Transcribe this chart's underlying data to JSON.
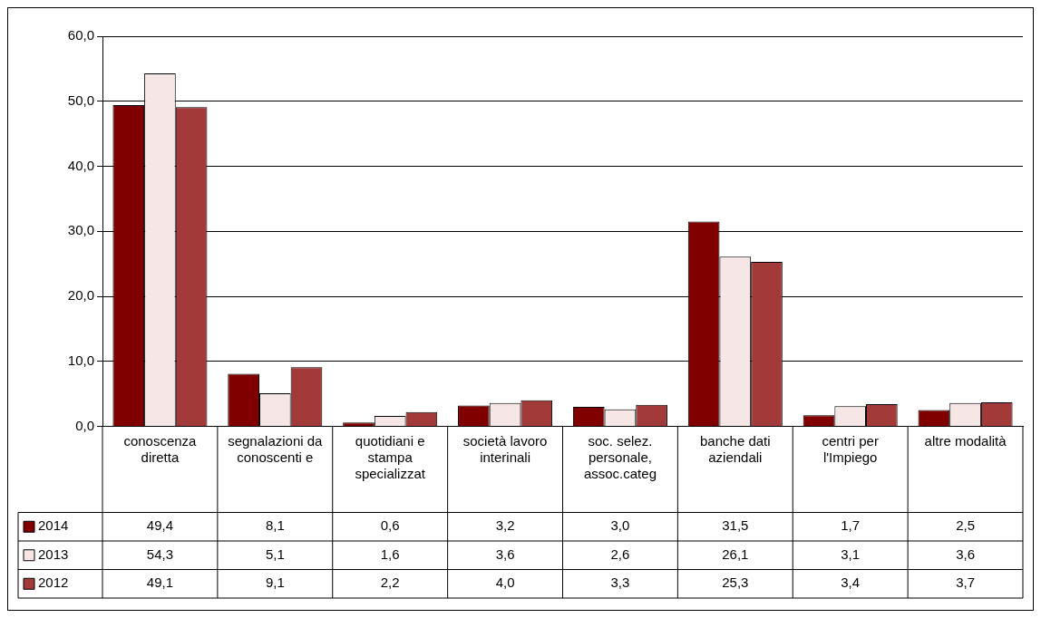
{
  "chart_data": {
    "type": "bar",
    "categories": [
      "conoscenza diretta",
      "segnalazioni da conoscenti e",
      "quotidiani e stampa specializzat",
      "società lavoro interinali",
      "soc. selez. personale, assoc.categ",
      "banche dati aziendali",
      "centri per l'Impiego",
      "altre modalità"
    ],
    "series": [
      {
        "name": "2014",
        "color": "#800000",
        "values": [
          49.4,
          8.1,
          0.6,
          3.2,
          3.0,
          31.5,
          1.7,
          2.5
        ],
        "value_labels": [
          "49,4",
          "8,1",
          "0,6",
          "3,2",
          "3,0",
          "31,5",
          "1,7",
          "2,5"
        ]
      },
      {
        "name": "2013",
        "color": "#f6e6e6",
        "values": [
          54.3,
          5.1,
          1.6,
          3.6,
          2.6,
          26.1,
          3.1,
          3.6
        ],
        "value_labels": [
          "54,3",
          "5,1",
          "1,6",
          "3,6",
          "2,6",
          "26,1",
          "3,1",
          "3,6"
        ]
      },
      {
        "name": "2012",
        "color": "#a33a3a",
        "values": [
          49.1,
          9.1,
          2.2,
          4.0,
          3.3,
          25.3,
          3.4,
          3.7
        ],
        "value_labels": [
          "49,1",
          "9,1",
          "2,2",
          "4,0",
          "3,3",
          "25,3",
          "3,4",
          "3,7"
        ]
      }
    ],
    "ylim": [
      0,
      60
    ],
    "yticks": [
      {
        "value": 0,
        "label": "0,0"
      },
      {
        "value": 10,
        "label": "10,0"
      },
      {
        "value": 20,
        "label": "20,0"
      },
      {
        "value": 30,
        "label": "30,0"
      },
      {
        "value": 40,
        "label": "40,0"
      },
      {
        "value": 50,
        "label": "50,0"
      },
      {
        "value": 60,
        "label": "60,0"
      }
    ],
    "grid": "y",
    "legend": "bottom left"
  }
}
